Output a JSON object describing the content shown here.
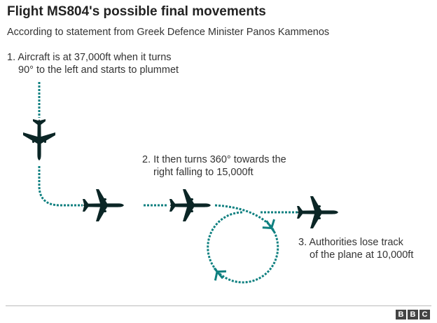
{
  "title": "Flight MS804's possible final movements",
  "subtitle": "According to statement from Greek Defence Minister Panos Kammenos",
  "steps": [
    {
      "line1": "1. Aircraft is at 37,000ft when it turns",
      "line2": "90° to the left and starts to plummet"
    },
    {
      "line1": "2. It then turns 360° towards the",
      "line2": "right falling to 15,000ft"
    },
    {
      "line1": "3. Authorities lose track",
      "line2": "of the plane at 10,000ft"
    }
  ],
  "logo": {
    "letters": [
      "B",
      "B",
      "C"
    ]
  },
  "colors": {
    "path": "#0f8080",
    "plane": "#0b2626"
  },
  "icons": [
    "airplane-icon",
    "small-airplane-arrow-icon"
  ]
}
